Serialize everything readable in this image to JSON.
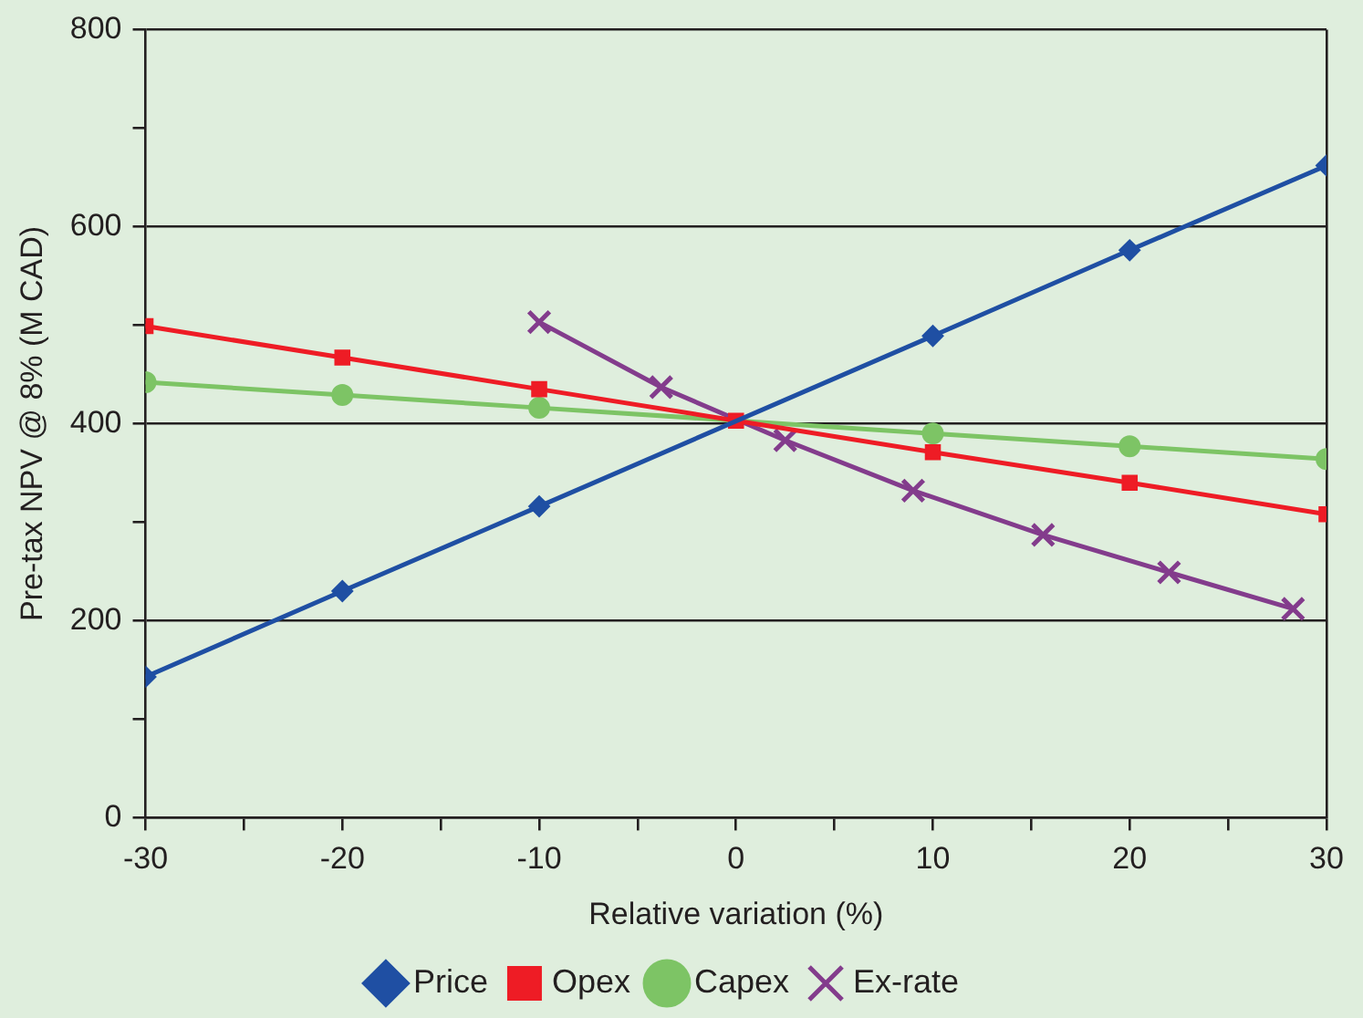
{
  "chart_data": {
    "type": "line",
    "xlabel": "Relative variation (%)",
    "ylabel": "Pre-tax NPV @ 8% (M CAD)",
    "xlim": [
      -30,
      30
    ],
    "xticks": [
      -30,
      {
        "value": -25,
        "label": null
      },
      -20,
      {
        "value": -15,
        "label": null
      },
      -10,
      {
        "value": -5,
        "label": null
      },
      0,
      {
        "value": 5,
        "label": null
      },
      10,
      {
        "value": 15,
        "label": null
      },
      20,
      {
        "value": 25,
        "label": null
      },
      30
    ],
    "ylim": [
      0,
      800
    ],
    "yticks": [
      0,
      {
        "value": 100,
        "label": null
      },
      200,
      {
        "value": 300,
        "label": null
      },
      400,
      {
        "value": 500,
        "label": null
      },
      600,
      {
        "value": 700,
        "label": null
      },
      800
    ],
    "grid": "y",
    "legend": "bottom",
    "line_style": "solid",
    "series": [
      {
        "name": "Price",
        "color": "#1f4fa3",
        "marker": "diamond",
        "x": [
          -30,
          -20,
          -10,
          0,
          10,
          20,
          30
        ],
        "values": [
          143,
          230,
          316,
          null,
          489,
          576,
          662
        ]
      },
      {
        "name": "Opex",
        "color": "#ee1c25",
        "marker": "square",
        "x": [
          -30,
          -20,
          -10,
          0,
          10,
          20,
          30
        ],
        "values": [
          499,
          467,
          435,
          403,
          371,
          340,
          308
        ]
      },
      {
        "name": "Capex",
        "color": "#7dc465",
        "marker": "circle",
        "x": [
          -30,
          -20,
          -10,
          0,
          10,
          20,
          30
        ],
        "values": [
          442,
          429,
          416,
          null,
          390,
          377,
          364
        ]
      },
      {
        "name": "Ex-rate",
        "color": "#833c8c",
        "marker": "cross",
        "x": [
          -10,
          -3.8,
          2.5,
          9,
          15.6,
          22,
          28.3
        ],
        "values": [
          503,
          437,
          383,
          332,
          287,
          249,
          212
        ]
      }
    ]
  }
}
